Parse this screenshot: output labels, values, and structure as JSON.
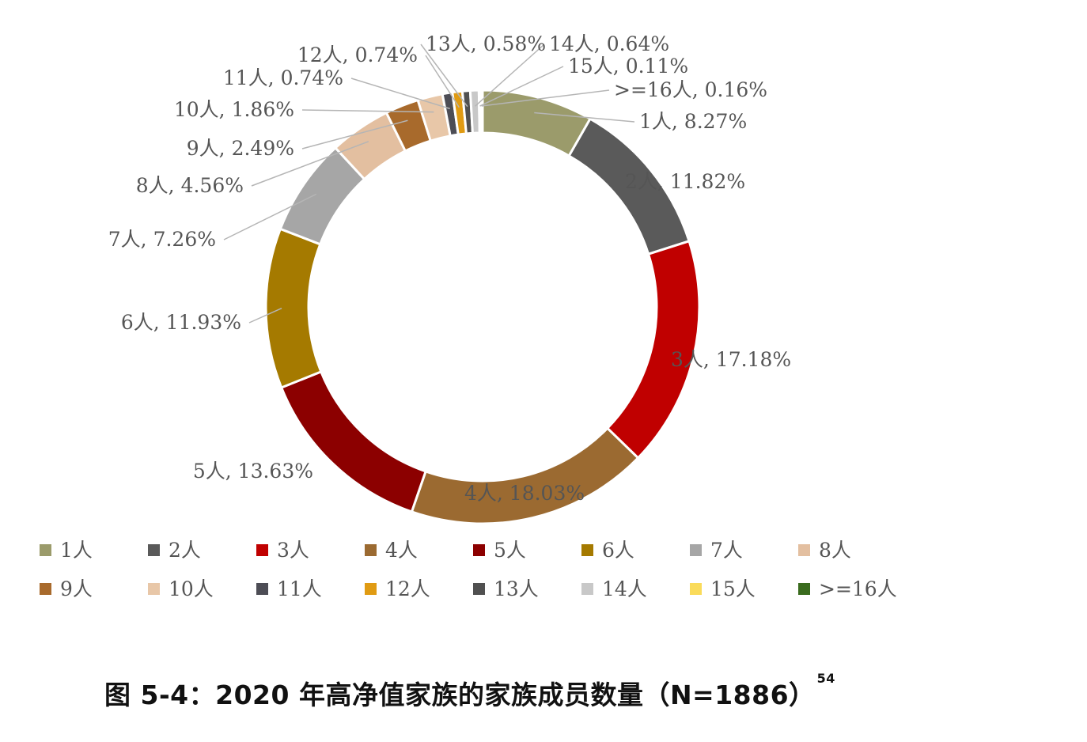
{
  "chart_data": {
    "type": "pie",
    "subtype": "donut",
    "categories": [
      "1人",
      "2人",
      "3人",
      "4人",
      "5人",
      "6人",
      "7人",
      "8人",
      "9人",
      "10人",
      "11人",
      "12人",
      "13人",
      "14人",
      "15人",
      ">=16人"
    ],
    "values": [
      8.27,
      11.82,
      17.18,
      18.03,
      13.63,
      11.93,
      7.26,
      4.56,
      2.49,
      1.86,
      0.74,
      0.74,
      0.58,
      0.64,
      0.11,
      0.16
    ],
    "labels": [
      "1人, 8.27%",
      "2人, 11.82%",
      "3人, 17.18%",
      "4人, 18.03%",
      "5人, 13.63%",
      "6人, 11.93%",
      "7人, 7.26%",
      "8人, 4.56%",
      "9人, 2.49%",
      "10人, 1.86%",
      "11人, 0.74%",
      "12人, 0.74%",
      "13人, 0.58%",
      "14人, 0.64%",
      "15人, 0.11%",
      ">=16人, 0.16%"
    ],
    "colors": [
      "#9b9b6b",
      "#5a5a5a",
      "#c00000",
      "#9b6a31",
      "#8c0000",
      "#a57a00",
      "#a6a6a6",
      "#e3bfa0",
      "#a86a2c",
      "#e8c7a8",
      "#4d4d55",
      "#e09b13",
      "#505050",
      "#c8c8c8",
      "#fadb5a",
      "#3a6b1e"
    ],
    "legend_placement": "bottom",
    "caption": "图 5-4：2020 年高净值家族的家族成员数量（N=1886）",
    "caption_footnote": "54"
  }
}
